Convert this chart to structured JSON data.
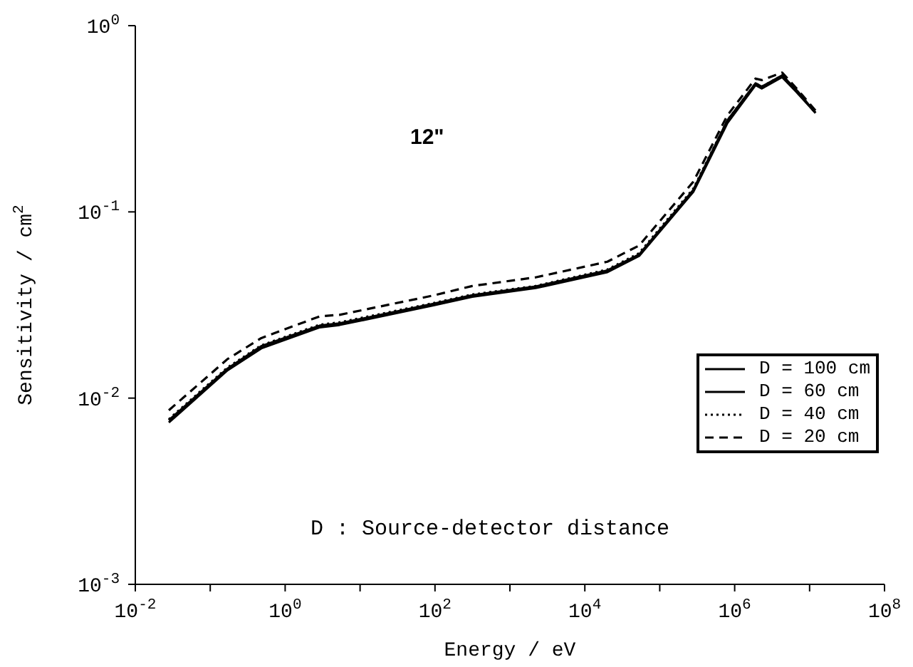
{
  "chart_data": {
    "type": "line",
    "xlabel": "Energy / eV",
    "ylabel": "Sensitivity / cm$^{2}$",
    "annotations": [
      "12\"",
      "D : Source-detector distance"
    ],
    "log": "xy",
    "grid": false,
    "legend": "right",
    "marker": "none",
    "x": [
      0.028,
      0.17,
      0.48,
      2.9,
      5.3,
      93,
      314,
      2200,
      20000,
      53000,
      280000,
      800000,
      1900000,
      2300000,
      4300000,
      6700000,
      12000000
    ],
    "xlim": [
      0.01,
      100000000
    ],
    "xticks": [
      {
        "value": 0.01,
        "label": "10$^{-2}$"
      },
      {
        "value": 0.1,
        "label": null
      },
      {
        "value": 1,
        "label": "10$^{0}$"
      },
      {
        "value": 10,
        "label": null
      },
      {
        "value": 100,
        "label": "10$^{2}$"
      },
      {
        "value": 1000,
        "label": null
      },
      {
        "value": 10000,
        "label": "10$^{4}$"
      },
      {
        "value": 100000,
        "label": null
      },
      {
        "value": 1000000,
        "label": "10$^{6}$"
      },
      {
        "value": 10000000,
        "label": null
      },
      {
        "value": 100000000,
        "label": "10$^{8}$"
      }
    ],
    "ylim": [
      0.001,
      1
    ],
    "yticks": [
      {
        "value": 0.001,
        "label": "10$^{-3}$"
      },
      {
        "value": 0.01,
        "label": "10$^{-2}$"
      },
      {
        "value": 0.1,
        "label": "10$^{-1}$"
      },
      {
        "value": 1,
        "label": "10$^{0}$"
      }
    ],
    "series": [
      {
        "name": "D = 100 cm",
        "color": "#000000",
        "line_style": "solid",
        "values": [
          0.0074,
          0.0141,
          0.0185,
          0.024,
          0.0247,
          0.0314,
          0.035,
          0.039,
          0.0475,
          0.058,
          0.128,
          0.3,
          0.48,
          0.46,
          0.53,
          0.44,
          0.34
        ]
      },
      {
        "name": "D = 60 cm",
        "color": "#000000",
        "line_style": "solid",
        "values": [
          0.0076,
          0.0144,
          0.019,
          0.0245,
          0.0252,
          0.032,
          0.0357,
          0.0397,
          0.0485,
          0.059,
          0.131,
          0.31,
          0.49,
          0.47,
          0.54,
          0.45,
          0.34
        ]
      },
      {
        "name": "D = 40 cm",
        "color": "#000000",
        "line_style": "dotted",
        "values": [
          0.0077,
          0.0146,
          0.0192,
          0.0248,
          0.0255,
          0.0323,
          0.036,
          0.04,
          0.049,
          0.06,
          0.133,
          0.31,
          0.49,
          0.47,
          0.54,
          0.45,
          0.34
        ]
      },
      {
        "name": "D = 20 cm",
        "color": "#000000",
        "line_style": "dashed",
        "values": [
          0.0086,
          0.0162,
          0.021,
          0.0275,
          0.028,
          0.0355,
          0.04,
          0.0445,
          0.054,
          0.066,
          0.145,
          0.33,
          0.52,
          0.51,
          0.56,
          0.46,
          0.35
        ]
      }
    ]
  }
}
